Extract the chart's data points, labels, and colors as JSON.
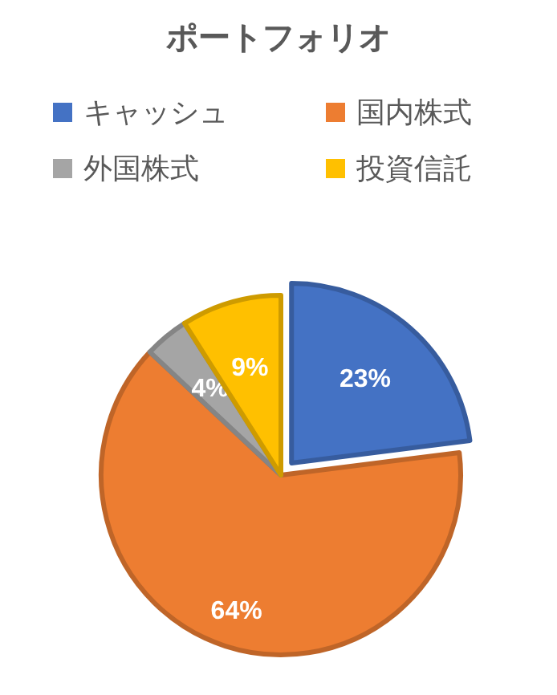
{
  "chart_data": {
    "type": "pie",
    "title": "ポートフォリオ",
    "categories": [
      "キャッシュ",
      "国内株式",
      "外国株式",
      "投資信託"
    ],
    "values": [
      23,
      64,
      4,
      9
    ],
    "colors": [
      "#4472c4",
      "#ed7d31",
      "#a5a5a5",
      "#ffc000"
    ],
    "value_labels": [
      "23%",
      "64%",
      "4%",
      "9%"
    ],
    "legend": "top"
  }
}
